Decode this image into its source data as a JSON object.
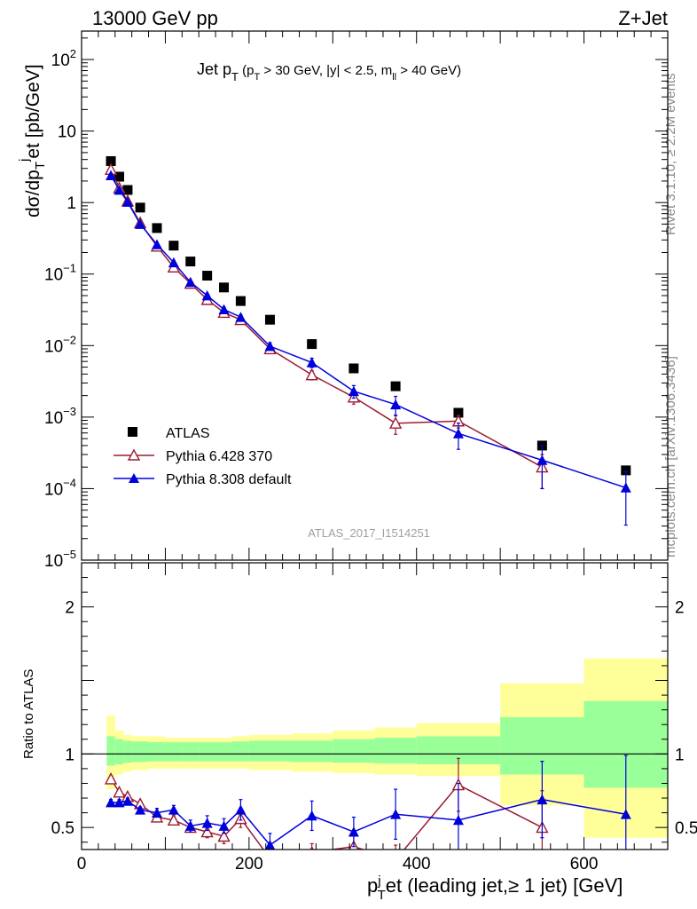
{
  "header": {
    "left": "13000 GeV pp",
    "right": "Z+Jet"
  },
  "side_labels": {
    "rivet": "Rivet 3.1.10, ≥ 2.2M events",
    "mcplots": "mcplots.cern.ch [arXiv:1306.3436]"
  },
  "analysis_id": "ATLAS_2017_I1514251",
  "colors": {
    "atlas": "#000000",
    "pythia6": "#9b1b30",
    "pythia8": "#0000dd",
    "band_inner": "#99ff99",
    "band_outer": "#ffff99"
  },
  "chart_data": [
    {
      "type": "scatter",
      "panel": "main",
      "title": "Jet p_T (p_T > 30 GeV, |y| < 2.5, m_ll > 40 GeV)",
      "ylabel": "dσ/dp_T^jet [pb/GeV]",
      "yscale": "log",
      "ylim": [
        1e-05,
        250
      ],
      "xlim": [
        0,
        700
      ],
      "y_ticks": [
        "10^-5",
        "10^-4",
        "10^-3",
        "10^-2",
        "10^-1",
        "1",
        "10",
        "10^2"
      ],
      "legend": {
        "placement": "lower-left",
        "entries": [
          "ATLAS",
          "Pythia 6.428 370",
          "Pythia 8.308 default"
        ]
      },
      "series": [
        {
          "name": "ATLAS",
          "marker": "square",
          "x": [
            35,
            45,
            55,
            70,
            90,
            110,
            130,
            150,
            170,
            190,
            225,
            275,
            325,
            375,
            450,
            550,
            650
          ],
          "y": [
            3.8,
            2.3,
            1.5,
            0.85,
            0.44,
            0.25,
            0.15,
            0.095,
            0.065,
            0.042,
            0.023,
            0.0105,
            0.0048,
            0.0027,
            0.00115,
            0.0004,
            0.00018
          ]
        },
        {
          "name": "Pythia 6.428 370",
          "marker": "open-triangle",
          "x": [
            35,
            45,
            55,
            70,
            90,
            110,
            130,
            150,
            170,
            190,
            225,
            275,
            325,
            375,
            450,
            550
          ],
          "y": [
            2.9,
            1.6,
            1.05,
            0.52,
            0.245,
            0.125,
            0.074,
            0.044,
            0.029,
            0.023,
            0.009,
            0.0039,
            0.0019,
            0.00082,
            0.00088,
            0.0002
          ],
          "yerr": [
            0.05,
            0.05,
            0.05,
            0.05,
            0.05,
            0.06,
            0.06,
            0.08,
            0.1,
            0.1,
            0.1,
            0.15,
            0.2,
            0.3,
            0.2,
            0.5
          ]
        },
        {
          "name": "Pythia 8.308 default",
          "marker": "filled-triangle",
          "x": [
            35,
            45,
            55,
            70,
            90,
            110,
            130,
            150,
            170,
            190,
            225,
            275,
            325,
            375,
            450,
            550,
            650
          ],
          "y": [
            2.4,
            1.5,
            1.02,
            0.5,
            0.26,
            0.145,
            0.077,
            0.05,
            0.032,
            0.025,
            0.0098,
            0.0058,
            0.0023,
            0.0015,
            0.00059,
            0.00025,
            0.000103
          ],
          "yerr": [
            0.03,
            0.03,
            0.03,
            0.03,
            0.04,
            0.05,
            0.05,
            0.07,
            0.08,
            0.08,
            0.12,
            0.15,
            0.2,
            0.3,
            0.4,
            0.6,
            0.7
          ]
        }
      ]
    },
    {
      "type": "line",
      "panel": "ratio",
      "ylabel": "Ratio to ATLAS",
      "xlabel": "p_T^jet (leading jet,≥ 1 jet) [GeV]",
      "xlim": [
        0,
        700
      ],
      "ylim": [
        0.35,
        2.3
      ],
      "x_ticks": [
        0,
        200,
        400,
        600
      ],
      "y_ticks": [
        0.5,
        1,
        2
      ],
      "bands": {
        "edges": [
          30,
          40,
          50,
          60,
          80,
          100,
          120,
          140,
          160,
          180,
          200,
          250,
          300,
          350,
          400,
          500,
          600,
          700
        ],
        "inner_lo": [
          0.92,
          0.93,
          0.94,
          0.945,
          0.95,
          0.95,
          0.95,
          0.95,
          0.95,
          0.95,
          0.95,
          0.945,
          0.94,
          0.935,
          0.93,
          0.86,
          0.77
        ],
        "inner_hi": [
          1.12,
          1.1,
          1.09,
          1.085,
          1.08,
          1.08,
          1.08,
          1.08,
          1.08,
          1.085,
          1.09,
          1.09,
          1.1,
          1.11,
          1.12,
          1.25,
          1.36
        ],
        "outer_lo": [
          0.76,
          0.86,
          0.88,
          0.89,
          0.9,
          0.9,
          0.9,
          0.9,
          0.9,
          0.9,
          0.89,
          0.88,
          0.87,
          0.86,
          0.85,
          0.65,
          0.43
        ],
        "outer_hi": [
          1.26,
          1.16,
          1.13,
          1.12,
          1.12,
          1.11,
          1.11,
          1.11,
          1.11,
          1.12,
          1.13,
          1.14,
          1.16,
          1.18,
          1.21,
          1.48,
          1.65
        ]
      },
      "series": [
        {
          "name": "Pythia 6.428 370",
          "marker": "open-triangle",
          "x": [
            35,
            45,
            55,
            70,
            90,
            110,
            130,
            150,
            170,
            190,
            225,
            275,
            325,
            375,
            450,
            550
          ],
          "y": [
            0.83,
            0.74,
            0.71,
            0.66,
            0.57,
            0.55,
            0.5,
            0.47,
            0.44,
            0.56,
            0.29,
            0.33,
            0.37,
            0.28,
            0.79,
            0.5
          ],
          "yerr": [
            0.02,
            0.02,
            0.02,
            0.02,
            0.03,
            0.03,
            0.03,
            0.04,
            0.05,
            0.06,
            0.05,
            0.06,
            0.08,
            0.1,
            0.18,
            0.25
          ]
        },
        {
          "name": "Pythia 8.308 default",
          "marker": "filled-triangle",
          "x": [
            35,
            45,
            55,
            70,
            90,
            110,
            130,
            150,
            170,
            190,
            225,
            275,
            325,
            375,
            450,
            550,
            650
          ],
          "y": [
            0.67,
            0.67,
            0.68,
            0.62,
            0.6,
            0.62,
            0.51,
            0.53,
            0.51,
            0.62,
            0.38,
            0.58,
            0.47,
            0.59,
            0.55,
            0.69,
            0.59
          ],
          "yerr": [
            0.02,
            0.02,
            0.02,
            0.02,
            0.03,
            0.03,
            0.04,
            0.05,
            0.05,
            0.07,
            0.08,
            0.1,
            0.1,
            0.17,
            0.25,
            0.26,
            0.4
          ]
        }
      ]
    }
  ]
}
